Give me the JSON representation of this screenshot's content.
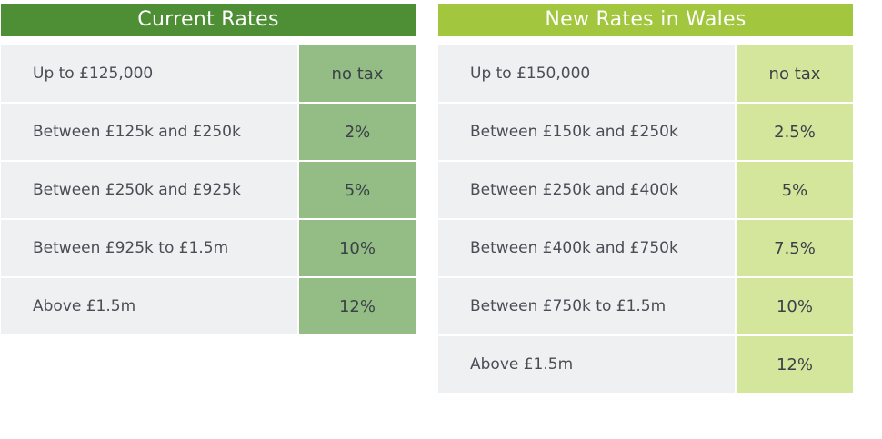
{
  "current": {
    "title": "Current Rates",
    "rows": [
      {
        "band": "Up to £125,000",
        "rate": "no tax"
      },
      {
        "band": "Between £125k and £250k",
        "rate": "2%"
      },
      {
        "band": "Between £250k and £925k",
        "rate": "5%"
      },
      {
        "band": "Between £925k to £1.5m",
        "rate": "10%"
      },
      {
        "band": "Above £1.5m",
        "rate": "12%"
      }
    ]
  },
  "wales": {
    "title": "New Rates in Wales",
    "rows": [
      {
        "band": "Up to £150,000",
        "rate": "no tax"
      },
      {
        "band": "Between £150k and £250k",
        "rate": "2.5%"
      },
      {
        "band": "Between £250k and £400k",
        "rate": "5%"
      },
      {
        "band": "Between £400k and £750k",
        "rate": "7.5%"
      },
      {
        "band": "Between £750k to £1.5m",
        "rate": "10%"
      },
      {
        "band": "Above £1.5m",
        "rate": "12%"
      }
    ]
  },
  "colors": {
    "current_header": "#4e8f35",
    "current_rate_cell": "#93bd84",
    "wales_header": "#a2c63e",
    "wales_rate_cell": "#d3e69c",
    "label_cell": "#eff0f2"
  }
}
